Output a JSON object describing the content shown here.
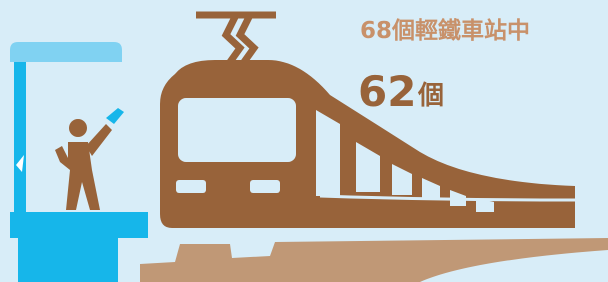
{
  "headline": {
    "line1": "68個輕鐵車站中",
    "number": "62",
    "unit": "個"
  }
}
